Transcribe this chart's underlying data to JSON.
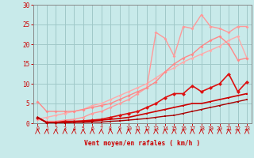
{
  "background_color": "#c8eaea",
  "grid_color": "#a0c8c8",
  "xlabel": "Vent moyen/en rafales ( km/h )",
  "xlabel_color": "#cc0000",
  "tick_color": "#cc0000",
  "xlim": [
    -0.5,
    23.5
  ],
  "ylim": [
    0,
    30
  ],
  "yticks": [
    0,
    5,
    10,
    15,
    20,
    25,
    30
  ],
  "xticks": [
    0,
    1,
    2,
    3,
    4,
    5,
    6,
    7,
    8,
    9,
    10,
    11,
    12,
    13,
    14,
    15,
    16,
    17,
    18,
    19,
    20,
    21,
    22,
    23
  ],
  "lines": [
    {
      "x": [
        0,
        1,
        2,
        3,
        4,
        5,
        6,
        7,
        8,
        9,
        10,
        11,
        12,
        13,
        14,
        15,
        16,
        17,
        18,
        19,
        20,
        21,
        22,
        23
      ],
      "y": [
        1.0,
        1.5,
        2.0,
        2.5,
        3.0,
        3.5,
        4.5,
        5.0,
        6.0,
        7.0,
        8.0,
        9.0,
        10.0,
        11.5,
        13.0,
        14.0,
        15.5,
        16.5,
        17.5,
        18.5,
        19.5,
        21.0,
        22.0,
        16.5
      ],
      "color": "#ffaaaa",
      "lw": 1.0,
      "marker": "D",
      "ms": 2.0
    },
    {
      "x": [
        0,
        1,
        2,
        3,
        4,
        5,
        6,
        7,
        8,
        9,
        10,
        11,
        12,
        13,
        14,
        15,
        16,
        17,
        18,
        19,
        20,
        21,
        22,
        23
      ],
      "y": [
        1.0,
        0.5,
        0.5,
        0.8,
        1.0,
        1.5,
        2.5,
        3.0,
        4.0,
        5.0,
        6.0,
        7.5,
        9.0,
        23.0,
        21.5,
        17.0,
        24.5,
        24.0,
        27.5,
        24.5,
        24.0,
        23.0,
        24.5,
        24.5
      ],
      "color": "#ff9999",
      "lw": 1.0,
      "marker": "D",
      "ms": 2.0
    },
    {
      "x": [
        0,
        1,
        2,
        3,
        4,
        5,
        6,
        7,
        8,
        9,
        10,
        11,
        12,
        13,
        14,
        15,
        16,
        17,
        18,
        19,
        20,
        21,
        22,
        23
      ],
      "y": [
        5.5,
        3.0,
        3.0,
        3.0,
        3.0,
        3.5,
        4.0,
        4.5,
        5.0,
        6.0,
        7.0,
        8.0,
        9.0,
        10.5,
        13.0,
        15.0,
        16.5,
        17.5,
        19.5,
        21.0,
        22.0,
        20.0,
        16.0,
        16.5
      ],
      "color": "#ff8888",
      "lw": 1.0,
      "marker": "D",
      "ms": 2.0
    },
    {
      "x": [
        0,
        1,
        2,
        3,
        4,
        5,
        6,
        7,
        8,
        9,
        10,
        11,
        12,
        13,
        14,
        15,
        16,
        17,
        18,
        19,
        20,
        21,
        22,
        23
      ],
      "y": [
        1.5,
        0.2,
        0.2,
        0.5,
        0.5,
        0.6,
        0.8,
        1.0,
        1.5,
        2.0,
        2.5,
        3.0,
        4.0,
        5.0,
        6.5,
        7.5,
        7.5,
        9.5,
        8.0,
        9.0,
        10.0,
        12.5,
        8.0,
        10.5
      ],
      "color": "#dd1111",
      "lw": 1.2,
      "marker": "D",
      "ms": 2.5
    },
    {
      "x": [
        0,
        1,
        2,
        3,
        4,
        5,
        6,
        7,
        8,
        9,
        10,
        11,
        12,
        13,
        14,
        15,
        16,
        17,
        18,
        19,
        20,
        21,
        22,
        23
      ],
      "y": [
        1.5,
        0.2,
        0.2,
        0.3,
        0.4,
        0.5,
        0.6,
        0.8,
        1.0,
        1.2,
        1.5,
        2.0,
        2.5,
        3.0,
        3.5,
        4.0,
        4.5,
        5.0,
        5.0,
        5.5,
        6.0,
        6.5,
        7.0,
        7.5
      ],
      "color": "#cc0000",
      "lw": 1.2,
      "marker": "s",
      "ms": 2.0
    },
    {
      "x": [
        0,
        1,
        2,
        3,
        4,
        5,
        6,
        7,
        8,
        9,
        10,
        11,
        12,
        13,
        14,
        15,
        16,
        17,
        18,
        19,
        20,
        21,
        22,
        23
      ],
      "y": [
        1.5,
        0.1,
        0.1,
        0.1,
        0.2,
        0.2,
        0.3,
        0.3,
        0.5,
        0.6,
        0.8,
        1.0,
        1.2,
        1.5,
        1.8,
        2.0,
        2.5,
        3.0,
        3.5,
        4.0,
        4.5,
        5.0,
        5.5,
        6.0
      ],
      "color": "#aa0000",
      "lw": 1.0,
      "marker": "s",
      "ms": 1.8
    }
  ]
}
